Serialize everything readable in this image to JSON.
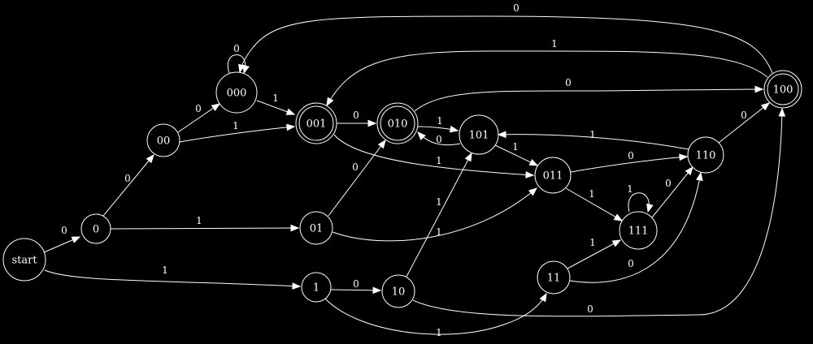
{
  "diagram": {
    "type": "finite-state-automaton",
    "colors": {
      "background": "#000000",
      "stroke": "#ffffff",
      "text": "#ffffff"
    },
    "nodes": [
      {
        "id": "start",
        "label": "start",
        "accepting": false
      },
      {
        "id": "0",
        "label": "0",
        "accepting": false
      },
      {
        "id": "1",
        "label": "1",
        "accepting": false
      },
      {
        "id": "00",
        "label": "00",
        "accepting": false
      },
      {
        "id": "01",
        "label": "01",
        "accepting": false
      },
      {
        "id": "10",
        "label": "10",
        "accepting": false
      },
      {
        "id": "11",
        "label": "11",
        "accepting": false
      },
      {
        "id": "000",
        "label": "000",
        "accepting": false
      },
      {
        "id": "001",
        "label": "001",
        "accepting": true
      },
      {
        "id": "010",
        "label": "010",
        "accepting": true
      },
      {
        "id": "011",
        "label": "011",
        "accepting": false
      },
      {
        "id": "100",
        "label": "100",
        "accepting": true
      },
      {
        "id": "101",
        "label": "101",
        "accepting": false
      },
      {
        "id": "110",
        "label": "110",
        "accepting": false
      },
      {
        "id": "111",
        "label": "111",
        "accepting": false
      }
    ],
    "edges": [
      {
        "from": "start",
        "to": "0",
        "label": "0"
      },
      {
        "from": "start",
        "to": "1",
        "label": "1"
      },
      {
        "from": "0",
        "to": "00",
        "label": "0"
      },
      {
        "from": "0",
        "to": "01",
        "label": "1"
      },
      {
        "from": "00",
        "to": "000",
        "label": "0"
      },
      {
        "from": "00",
        "to": "001",
        "label": "1"
      },
      {
        "from": "000",
        "to": "000",
        "label": "0"
      },
      {
        "from": "000",
        "to": "001",
        "label": "1"
      },
      {
        "from": "001",
        "to": "010",
        "label": "0"
      },
      {
        "from": "001",
        "to": "011",
        "label": "1"
      },
      {
        "from": "010",
        "to": "101",
        "label": "1"
      },
      {
        "from": "010",
        "to": "100",
        "label": "0"
      },
      {
        "from": "101",
        "to": "010",
        "label": "0"
      },
      {
        "from": "101",
        "to": "011",
        "label": "1"
      },
      {
        "from": "01",
        "to": "010",
        "label": "0"
      },
      {
        "from": "01",
        "to": "011",
        "label": "1"
      },
      {
        "from": "1",
        "to": "10",
        "label": "0"
      },
      {
        "from": "1",
        "to": "11",
        "label": "1"
      },
      {
        "from": "10",
        "to": "101",
        "label": "1"
      },
      {
        "from": "10",
        "to": "100",
        "label": "0"
      },
      {
        "from": "11",
        "to": "111",
        "label": "1"
      },
      {
        "from": "11",
        "to": "110",
        "label": "0"
      },
      {
        "from": "011",
        "to": "110",
        "label": "0"
      },
      {
        "from": "011",
        "to": "111",
        "label": "1"
      },
      {
        "from": "111",
        "to": "111",
        "label": "1"
      },
      {
        "from": "111",
        "to": "110",
        "label": "0"
      },
      {
        "from": "110",
        "to": "101",
        "label": "1"
      },
      {
        "from": "110",
        "to": "100",
        "label": "0"
      },
      {
        "from": "100",
        "to": "000",
        "label": "0"
      },
      {
        "from": "100",
        "to": "001",
        "label": "1"
      }
    ]
  }
}
